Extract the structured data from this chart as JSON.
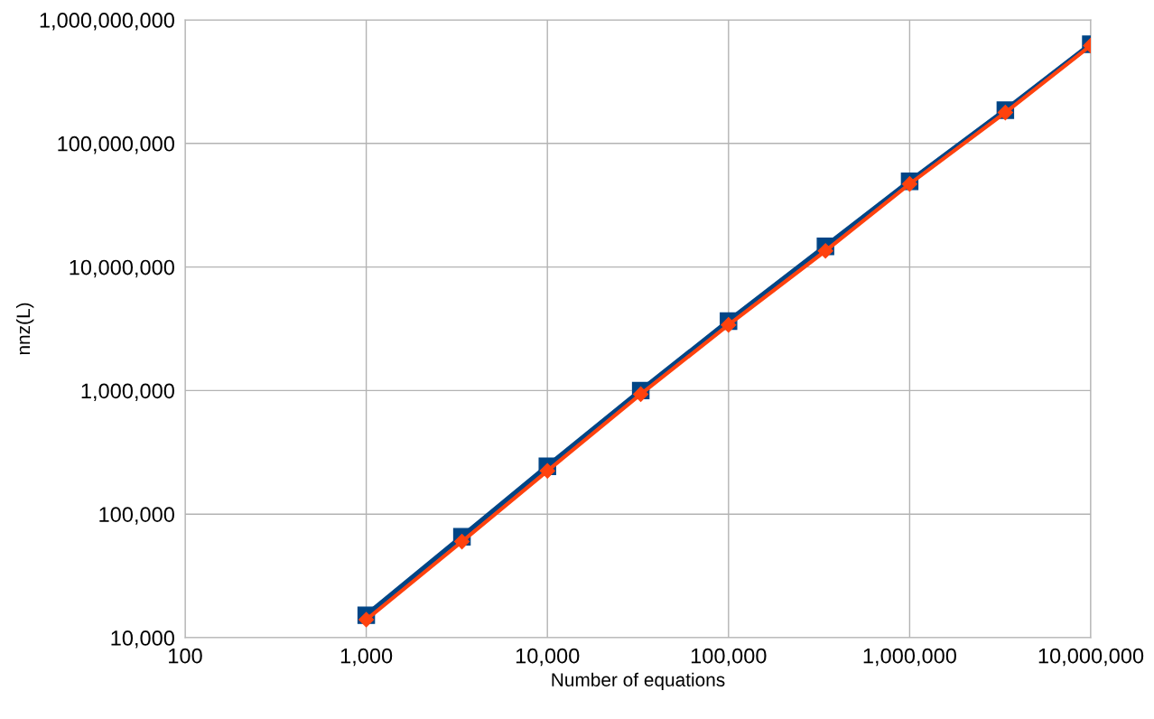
{
  "chart_data": {
    "type": "line",
    "xlabel": "Number of equations",
    "ylabel": "nnz(L)",
    "log": "xy",
    "grid": true,
    "x": [
      1000,
      3375,
      10000,
      32768,
      100000,
      343000,
      1000000,
      3375000,
      10000000
    ],
    "series": [
      {
        "color": "#ff420e",
        "marker": "diamond",
        "values": [
          14000,
          60000,
          224000,
          935000,
          3400000,
          13500000,
          47000000,
          178000000,
          620000000
        ]
      },
      {
        "color": "#004586",
        "marker": "square",
        "values": [
          15200,
          65700,
          243800,
          1000000,
          3650000,
          14700000,
          49300000,
          186000000,
          635000000
        ]
      }
    ],
    "xlim": [
      100,
      10000000
    ],
    "xticks": [
      {
        "value": 100,
        "label": "100"
      },
      {
        "value": 1000,
        "label": "1,000"
      },
      {
        "value": 10000,
        "label": "10,000"
      },
      {
        "value": 100000,
        "label": "100,000"
      },
      {
        "value": 1000000,
        "label": "1,000,000"
      },
      {
        "value": 10000000,
        "label": "10,000,000"
      }
    ],
    "ylim": [
      10000,
      1000000000
    ],
    "yticks": [
      {
        "value": 10000,
        "label": "10,000"
      },
      {
        "value": 100000,
        "label": "100,000"
      },
      {
        "value": 1000000,
        "label": "1,000,000"
      },
      {
        "value": 10000000,
        "label": "10,000,000"
      },
      {
        "value": 100000000,
        "label": "100,000,000"
      },
      {
        "value": 1000000000,
        "label": "1,000,000,000"
      }
    ]
  }
}
